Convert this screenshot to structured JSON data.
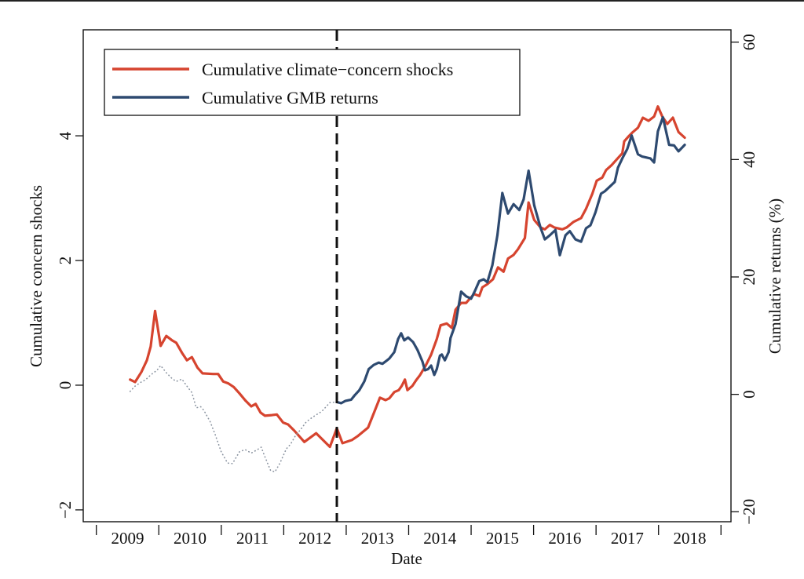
{
  "chart_data": {
    "type": "line",
    "title": "",
    "xlabel": "Date",
    "ylabel_left": "Cumulative concern shocks",
    "ylabel_right": "Cumulative returns (%)",
    "xlim": [
      2008.79,
      2019.16
    ],
    "ylim_left": [
      -2.19,
      5.7
    ],
    "ylim_right": [
      -21.7,
      62.1
    ],
    "x_tick_labels": [
      "2009",
      "2010",
      "2011",
      "2012",
      "2013",
      "2014",
      "2015",
      "2016",
      "2017",
      "2018"
    ],
    "x_tick_boundaries": [
      2009,
      2010,
      2011,
      2012,
      2013,
      2014,
      2015,
      2016,
      2017,
      2018,
      2019
    ],
    "y_ticks_left": [
      -2,
      0,
      2,
      4
    ],
    "y_tick_labels_left": [
      "−2",
      "0",
      "2",
      "4"
    ],
    "y_ticks_right": [
      -20,
      0,
      20,
      40,
      60
    ],
    "y_tick_labels_right": [
      "−20",
      "0",
      "20",
      "40",
      "60"
    ],
    "grid": false,
    "legend_position": "top-left",
    "vertical_line": {
      "x": 2012.85,
      "style": "dashed",
      "color": "#111111"
    },
    "series": [
      {
        "name": "Cumulative climate−concern shocks",
        "axis": "left",
        "color": "#d6442f",
        "style": "solid",
        "in_legend": true,
        "points": [
          [
            2009.54,
            0.09
          ],
          [
            2009.62,
            0.05
          ],
          [
            2009.72,
            0.21
          ],
          [
            2009.81,
            0.4
          ],
          [
            2009.87,
            0.62
          ],
          [
            2009.94,
            1.19
          ],
          [
            2010.03,
            0.63
          ],
          [
            2010.12,
            0.79
          ],
          [
            2010.21,
            0.72
          ],
          [
            2010.28,
            0.68
          ],
          [
            2010.37,
            0.52
          ],
          [
            2010.45,
            0.4
          ],
          [
            2010.53,
            0.45
          ],
          [
            2010.62,
            0.28
          ],
          [
            2010.7,
            0.19
          ],
          [
            2010.87,
            0.18
          ],
          [
            2010.95,
            0.18
          ],
          [
            2011.03,
            0.06
          ],
          [
            2011.11,
            0.03
          ],
          [
            2011.2,
            -0.03
          ],
          [
            2011.29,
            -0.13
          ],
          [
            2011.39,
            -0.25
          ],
          [
            2011.48,
            -0.34
          ],
          [
            2011.55,
            -0.3
          ],
          [
            2011.63,
            -0.44
          ],
          [
            2011.7,
            -0.49
          ],
          [
            2011.81,
            -0.48
          ],
          [
            2011.89,
            -0.47
          ],
          [
            2011.99,
            -0.6
          ],
          [
            2012.07,
            -0.63
          ],
          [
            2012.17,
            -0.73
          ],
          [
            2012.33,
            -0.91
          ],
          [
            2012.52,
            -0.77
          ],
          [
            2012.74,
            -0.99
          ],
          [
            2012.85,
            -0.69
          ],
          [
            2012.94,
            -0.93
          ],
          [
            2013.09,
            -0.88
          ],
          [
            2013.18,
            -0.82
          ],
          [
            2013.35,
            -0.68
          ],
          [
            2013.45,
            -0.43
          ],
          [
            2013.54,
            -0.2
          ],
          [
            2013.63,
            -0.24
          ],
          [
            2013.69,
            -0.21
          ],
          [
            2013.77,
            -0.11
          ],
          [
            2013.84,
            -0.08
          ],
          [
            2013.89,
            -0.01
          ],
          [
            2013.94,
            0.09
          ],
          [
            2013.98,
            -0.08
          ],
          [
            2014.06,
            -0.01
          ],
          [
            2014.12,
            0.08
          ],
          [
            2014.18,
            0.16
          ],
          [
            2014.27,
            0.31
          ],
          [
            2014.36,
            0.49
          ],
          [
            2014.45,
            0.74
          ],
          [
            2014.51,
            0.96
          ],
          [
            2014.61,
            0.99
          ],
          [
            2014.69,
            0.92
          ],
          [
            2014.75,
            1.21
          ],
          [
            2014.84,
            1.32
          ],
          [
            2014.92,
            1.32
          ],
          [
            2014.99,
            1.4
          ],
          [
            2015.05,
            1.46
          ],
          [
            2015.13,
            1.43
          ],
          [
            2015.18,
            1.57
          ],
          [
            2015.26,
            1.62
          ],
          [
            2015.35,
            1.7
          ],
          [
            2015.43,
            1.89
          ],
          [
            2015.52,
            1.82
          ],
          [
            2015.59,
            2.03
          ],
          [
            2015.68,
            2.09
          ],
          [
            2015.75,
            2.18
          ],
          [
            2015.86,
            2.36
          ],
          [
            2015.92,
            2.93
          ],
          [
            2016.01,
            2.65
          ],
          [
            2016.11,
            2.53
          ],
          [
            2016.18,
            2.5
          ],
          [
            2016.26,
            2.57
          ],
          [
            2016.33,
            2.53
          ],
          [
            2016.46,
            2.5
          ],
          [
            2016.53,
            2.53
          ],
          [
            2016.64,
            2.62
          ],
          [
            2016.76,
            2.68
          ],
          [
            2016.84,
            2.83
          ],
          [
            2016.94,
            3.07
          ],
          [
            2017.01,
            3.28
          ],
          [
            2017.1,
            3.33
          ],
          [
            2017.16,
            3.45
          ],
          [
            2017.25,
            3.53
          ],
          [
            2017.33,
            3.62
          ],
          [
            2017.42,
            3.72
          ],
          [
            2017.45,
            3.91
          ],
          [
            2017.52,
            3.99
          ],
          [
            2017.59,
            4.06
          ],
          [
            2017.67,
            4.13
          ],
          [
            2017.75,
            4.29
          ],
          [
            2017.84,
            4.24
          ],
          [
            2017.93,
            4.31
          ],
          [
            2017.99,
            4.47
          ],
          [
            2018.06,
            4.31
          ],
          [
            2018.14,
            4.19
          ],
          [
            2018.23,
            4.29
          ],
          [
            2018.32,
            4.06
          ],
          [
            2018.42,
            3.97
          ]
        ]
      },
      {
        "name": "Cumulative GMB returns",
        "axis": "right",
        "color": "#2e4a70",
        "style": "solid",
        "in_legend": true,
        "points": [
          [
            2012.85,
            -1.3
          ],
          [
            2012.92,
            -1.5
          ],
          [
            2012.99,
            -1.1
          ],
          [
            2013.08,
            -0.9
          ],
          [
            2013.14,
            -0.1
          ],
          [
            2013.21,
            0.7
          ],
          [
            2013.29,
            2.2
          ],
          [
            2013.36,
            4.3
          ],
          [
            2013.44,
            5.0
          ],
          [
            2013.52,
            5.4
          ],
          [
            2013.58,
            5.2
          ],
          [
            2013.63,
            5.6
          ],
          [
            2013.69,
            6.1
          ],
          [
            2013.77,
            7.2
          ],
          [
            2013.83,
            9.4
          ],
          [
            2013.88,
            10.4
          ],
          [
            2013.93,
            9.2
          ],
          [
            2013.99,
            9.7
          ],
          [
            2014.07,
            8.9
          ],
          [
            2014.14,
            7.6
          ],
          [
            2014.22,
            5.6
          ],
          [
            2014.26,
            4.1
          ],
          [
            2014.31,
            4.3
          ],
          [
            2014.36,
            4.9
          ],
          [
            2014.41,
            3.3
          ],
          [
            2014.45,
            4.3
          ],
          [
            2014.5,
            6.6
          ],
          [
            2014.53,
            6.8
          ],
          [
            2014.58,
            5.8
          ],
          [
            2014.64,
            7.2
          ],
          [
            2014.67,
            9.6
          ],
          [
            2014.75,
            12.0
          ],
          [
            2014.84,
            17.5
          ],
          [
            2014.92,
            16.7
          ],
          [
            2015.0,
            16.3
          ],
          [
            2015.06,
            17.6
          ],
          [
            2015.13,
            19.3
          ],
          [
            2015.2,
            19.6
          ],
          [
            2015.26,
            19.1
          ],
          [
            2015.34,
            22.0
          ],
          [
            2015.42,
            27.1
          ],
          [
            2015.5,
            34.3
          ],
          [
            2015.59,
            30.8
          ],
          [
            2015.68,
            32.4
          ],
          [
            2015.77,
            31.4
          ],
          [
            2015.84,
            33.2
          ],
          [
            2015.92,
            38.1
          ],
          [
            2016.01,
            32.2
          ],
          [
            2016.11,
            28.4
          ],
          [
            2016.18,
            26.4
          ],
          [
            2016.26,
            27.1
          ],
          [
            2016.35,
            28.0
          ],
          [
            2016.42,
            23.7
          ],
          [
            2016.51,
            27.1
          ],
          [
            2016.58,
            27.8
          ],
          [
            2016.67,
            26.4
          ],
          [
            2016.76,
            26.0
          ],
          [
            2016.84,
            28.3
          ],
          [
            2016.91,
            28.8
          ],
          [
            2016.99,
            31.0
          ],
          [
            2017.08,
            34.2
          ],
          [
            2017.14,
            34.6
          ],
          [
            2017.24,
            35.6
          ],
          [
            2017.3,
            36.2
          ],
          [
            2017.35,
            38.6
          ],
          [
            2017.42,
            40.2
          ],
          [
            2017.5,
            41.8
          ],
          [
            2017.57,
            44.1
          ],
          [
            2017.67,
            40.9
          ],
          [
            2017.74,
            40.5
          ],
          [
            2017.87,
            40.2
          ],
          [
            2017.93,
            39.5
          ],
          [
            2017.99,
            44.8
          ],
          [
            2018.07,
            47.2
          ],
          [
            2018.17,
            42.5
          ],
          [
            2018.25,
            42.4
          ],
          [
            2018.32,
            41.4
          ],
          [
            2018.42,
            42.5
          ]
        ]
      },
      {
        "name": "Cumulative GMB returns (pre-period)",
        "axis": "right",
        "color": "#8a93a0",
        "style": "dotted",
        "in_legend": false,
        "points": [
          [
            2009.54,
            0.5
          ],
          [
            2009.62,
            1.4
          ],
          [
            2009.72,
            2.1
          ],
          [
            2009.79,
            2.5
          ],
          [
            2009.87,
            3.3
          ],
          [
            2009.97,
            4.1
          ],
          [
            2010.03,
            4.9
          ],
          [
            2010.12,
            3.7
          ],
          [
            2010.21,
            2.7
          ],
          [
            2010.28,
            2.2
          ],
          [
            2010.37,
            2.6
          ],
          [
            2010.45,
            1.4
          ],
          [
            2010.53,
            0.3
          ],
          [
            2010.6,
            -2.3
          ],
          [
            2010.67,
            -2.1
          ],
          [
            2010.72,
            -2.7
          ],
          [
            2010.82,
            -4.6
          ],
          [
            2010.9,
            -6.8
          ],
          [
            2011.0,
            -9.8
          ],
          [
            2011.1,
            -11.7
          ],
          [
            2011.18,
            -11.8
          ],
          [
            2011.29,
            -9.8
          ],
          [
            2011.38,
            -9.4
          ],
          [
            2011.48,
            -10.0
          ],
          [
            2011.58,
            -9.4
          ],
          [
            2011.64,
            -9.0
          ],
          [
            2011.69,
            -10.4
          ],
          [
            2011.79,
            -13.0
          ],
          [
            2011.86,
            -13.2
          ],
          [
            2011.94,
            -11.7
          ],
          [
            2012.04,
            -9.3
          ],
          [
            2012.11,
            -8.5
          ],
          [
            2012.19,
            -7.0
          ],
          [
            2012.27,
            -6.0
          ],
          [
            2012.36,
            -4.7
          ],
          [
            2012.46,
            -3.9
          ],
          [
            2012.61,
            -2.9
          ],
          [
            2012.74,
            -1.4
          ],
          [
            2012.85,
            -1.3
          ]
        ]
      }
    ]
  }
}
